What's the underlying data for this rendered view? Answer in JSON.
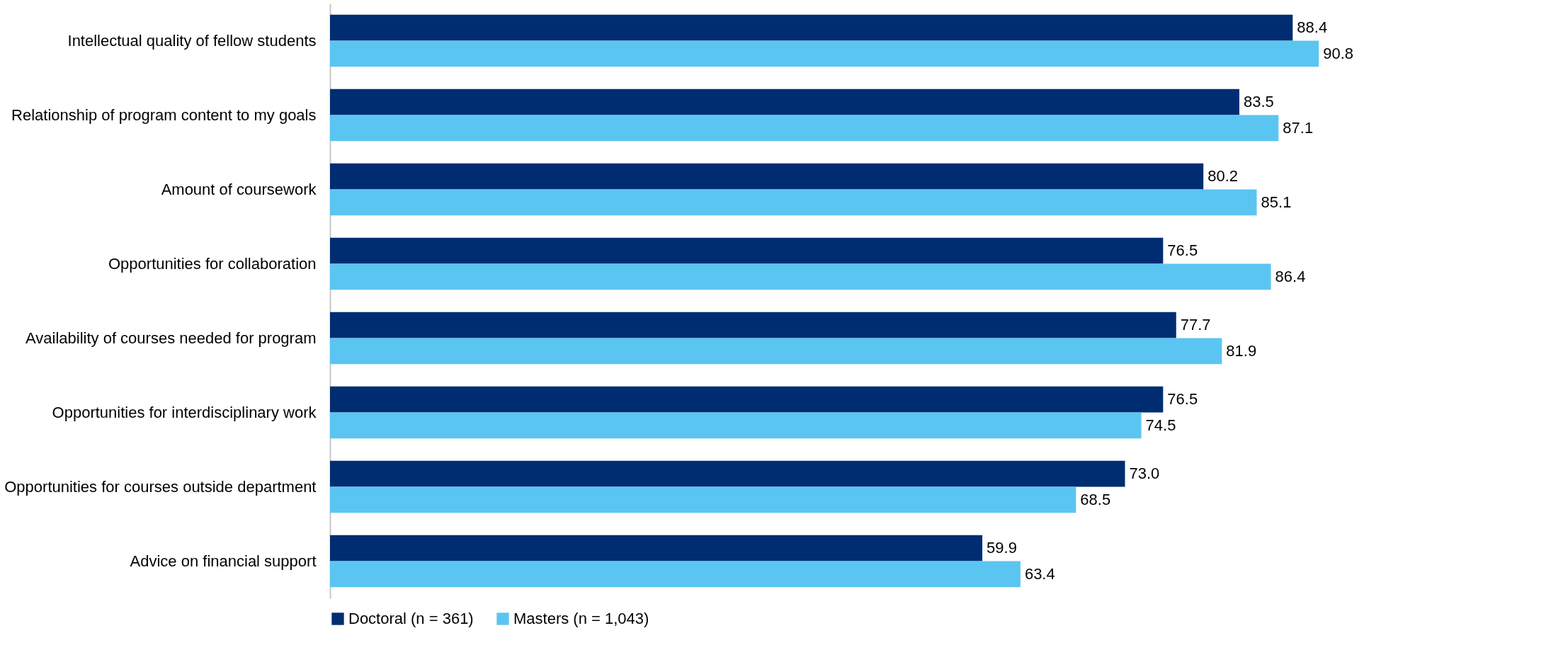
{
  "chart_data": {
    "type": "bar",
    "orientation": "horizontal",
    "categories": [
      "Intellectual quality of fellow students",
      "Relationship of program content to my goals",
      "Amount of coursework",
      "Opportunities for collaboration",
      "Availability of courses needed for program",
      "Opportunities for interdisciplinary work",
      "Opportunities for courses outside department",
      "Advice on financial support"
    ],
    "series": [
      {
        "name": "Doctoral (n = 361)",
        "color": "#002d72",
        "values": [
          88.4,
          83.5,
          80.2,
          76.5,
          77.7,
          76.5,
          73.0,
          59.9
        ],
        "value_labels": [
          "88.4",
          "83.5",
          "80.2",
          "76.5",
          "77.7",
          "76.5",
          "73.0",
          "59.9"
        ]
      },
      {
        "name": "Masters (n = 1,043)",
        "color": "#5bc5f2",
        "values": [
          90.8,
          87.1,
          85.1,
          86.4,
          81.9,
          74.5,
          68.5,
          63.4
        ],
        "value_labels": [
          "90.8",
          "87.1",
          "85.1",
          "86.4",
          "81.9",
          "74.5",
          "68.5",
          "63.4"
        ]
      }
    ],
    "legend": "bottom",
    "grid": false
  }
}
